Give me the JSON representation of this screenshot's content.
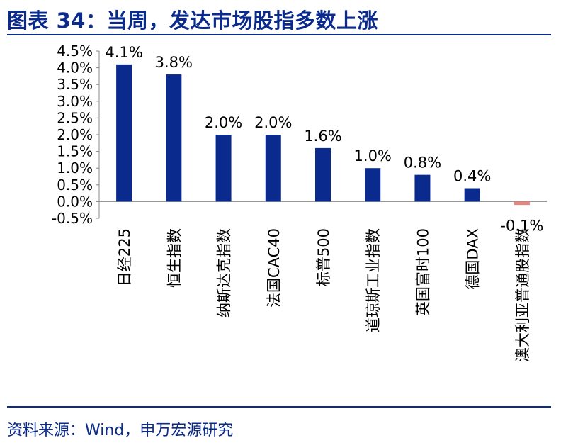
{
  "page": {
    "title": "图表 34：当周，发达市场股指多数上涨",
    "source": "资料来源：Wind，申万宏源研究"
  },
  "colors": {
    "bar_positive": "#0b2a8e",
    "bar_negative": "#e8837e",
    "accent": "#0a2a8c"
  },
  "chart_data": {
    "type": "bar",
    "categories": [
      "日经225",
      "恒生指数",
      "纳斯达克指数",
      "法国CAC40",
      "标普500",
      "道琼斯工业指数",
      "英国富时100",
      "德国DAX",
      "澳大利亚普通股指数"
    ],
    "values": [
      4.1,
      3.8,
      2.0,
      2.0,
      1.6,
      1.0,
      0.8,
      0.4,
      -0.1
    ],
    "data_labels": [
      "4.1%",
      "3.8%",
      "2.0%",
      "2.0%",
      "1.6%",
      "1.0%",
      "0.8%",
      "0.4%",
      "-0.1%"
    ],
    "y_ticks": [
      "-0.5%",
      "0.0%",
      "0.5%",
      "1.0%",
      "1.5%",
      "2.0%",
      "2.5%",
      "3.0%",
      "3.5%",
      "4.0%",
      "4.5%"
    ],
    "ylim": [
      -0.5,
      4.5
    ],
    "title": "",
    "xlabel": "",
    "ylabel": "",
    "grid": false,
    "legend": "none"
  }
}
